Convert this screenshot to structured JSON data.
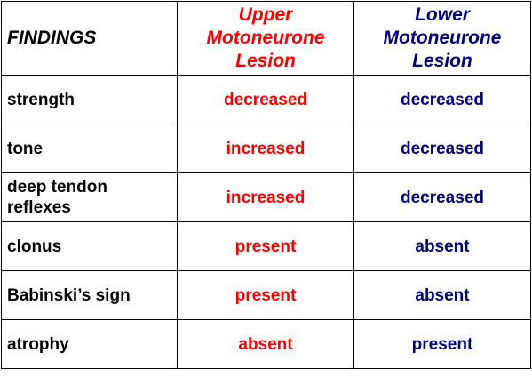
{
  "table": {
    "header": [
      "FINDINGS",
      "Upper Motoneurone Lesion",
      "Lower Motoneurone Lesion"
    ],
    "rows": [
      [
        "strength",
        "decreased",
        "decreased"
      ],
      [
        "tone",
        "increased",
        "decreased"
      ],
      [
        "deep tendon reflexes",
        "increased",
        "decreased"
      ],
      [
        "clonus",
        "present",
        "absent"
      ],
      [
        "Babinski’s sign",
        "present",
        "absent"
      ],
      [
        "atrophy",
        "absent",
        "present"
      ]
    ]
  }
}
